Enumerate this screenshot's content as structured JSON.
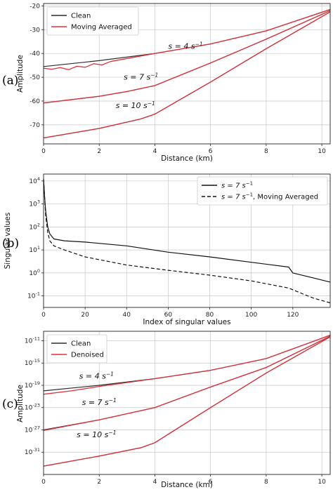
{
  "chart_data": [
    {
      "type": "line",
      "panel_label": "(a)",
      "xlabel": "Distance (km)",
      "ylabel": "Amplitude",
      "xlim": [
        0,
        10.3
      ],
      "ylim": [
        -78,
        -19
      ],
      "xticks": [
        0,
        2,
        4,
        6,
        8,
        10
      ],
      "yticks": [
        -70,
        -60,
        -50,
        -40,
        -30,
        -20
      ],
      "grid": true,
      "legend_position": "top-left",
      "legend": [
        {
          "label": "Clean",
          "color": "#2b2b2b"
        },
        {
          "label": "Moving Averaged",
          "color": "#e0303a"
        }
      ],
      "annotations": [
        {
          "text": "s = 4 s",
          "sup": "−1",
          "x": 5.1,
          "y": -38
        },
        {
          "text": "s = 7 s",
          "sup": "−1",
          "x": 3.5,
          "y": -51
        },
        {
          "text": "s = 10 s",
          "sup": "−1",
          "x": 3.3,
          "y": -63
        }
      ],
      "series": [
        {
          "role": "Clean",
          "color": "#2b2b2b",
          "x": [
            0,
            2,
            4,
            6,
            8,
            10.3
          ],
          "y": [
            -45.5,
            -43,
            -40,
            -36,
            -30.5,
            -21.5
          ]
        },
        {
          "role": "Moving Averaged",
          "color": "#e0303a",
          "x": [
            0,
            0.3,
            0.6,
            0.9,
            1.2,
            1.5,
            1.8,
            2.1,
            2.4,
            4,
            6,
            8,
            10.3
          ],
          "y": [
            -46.2,
            -46.6,
            -45.9,
            -46.8,
            -45.4,
            -45.8,
            -44.3,
            -44.8,
            -43.4,
            -40,
            -36,
            -30.5,
            -21.5
          ]
        },
        {
          "role": "Clean",
          "color": "#2b2b2b",
          "x": [
            0,
            2,
            3,
            4,
            6,
            8,
            10.3
          ],
          "y": [
            -60.8,
            -58,
            -56,
            -53.5,
            -44,
            -34,
            -22
          ]
        },
        {
          "role": "Moving Averaged",
          "color": "#e0303a",
          "x": [
            0,
            2,
            3,
            4,
            6,
            8,
            10.3
          ],
          "y": [
            -60.8,
            -58,
            -56,
            -53.5,
            -44,
            -34,
            -22
          ]
        },
        {
          "role": "Clean",
          "color": "#2b2b2b",
          "x": [
            0,
            2,
            3.5,
            4,
            6,
            8,
            10.3
          ],
          "y": [
            -75.5,
            -71.5,
            -67.5,
            -65.5,
            -52,
            -38,
            -22.5
          ]
        },
        {
          "role": "Moving Averaged",
          "color": "#e0303a",
          "x": [
            0,
            2,
            3.5,
            4,
            6,
            8,
            10.3
          ],
          "y": [
            -75.5,
            -71.5,
            -67.5,
            -65.5,
            -52,
            -38,
            -22.5
          ]
        }
      ]
    },
    {
      "type": "line",
      "panel_label": "(b)",
      "xlabel": "Index of singular values",
      "ylabel": "Singular values",
      "xlim": [
        0,
        138
      ],
      "ylim_log10": [
        -1.5,
        4.3
      ],
      "yscale": "log",
      "xticks": [
        0,
        20,
        40,
        60,
        80,
        100,
        120
      ],
      "yticks_exp": [
        -1,
        0,
        1,
        2,
        3,
        4
      ],
      "tick_base": "10",
      "grid": true,
      "legend_position": "top-right",
      "legend": [
        {
          "label": "s = 7 s",
          "sup": "−1",
          "suffix": "",
          "color": "#111111",
          "dash": ""
        },
        {
          "label": "s = 7 s",
          "sup": "−1",
          "suffix": ", Moving Averaged",
          "color": "#111111",
          "dash": "5,3"
        }
      ],
      "series": [
        {
          "role": "s = 7 s^-1",
          "color": "#111111",
          "dash": "",
          "x": [
            0,
            0.5,
            1,
            2,
            3,
            5,
            10,
            20,
            40,
            60,
            80,
            100,
            118,
            120,
            130,
            138
          ],
          "y": [
            12000,
            2000,
            500,
            100,
            50,
            30,
            25,
            22,
            15,
            8,
            5,
            2.9,
            1.8,
            1.0,
            0.6,
            0.4
          ]
        },
        {
          "role": "s = 7 s^-1, Moving Averaged",
          "color": "#111111",
          "dash": "5,3",
          "x": [
            0,
            0.5,
            1,
            2,
            3,
            5,
            10,
            20,
            40,
            60,
            80,
            100,
            118,
            125,
            130,
            138
          ],
          "y": [
            12000,
            2000,
            300,
            60,
            25,
            15,
            10,
            5,
            2.2,
            1.3,
            0.8,
            0.45,
            0.22,
            0.12,
            0.08,
            0.05
          ]
        }
      ]
    },
    {
      "type": "line",
      "panel_label": "(c)",
      "xlabel": "Distance (km)",
      "ylabel": "Amplitude",
      "xlim": [
        0,
        10.3
      ],
      "ylim_log10": [
        -35,
        -9.3
      ],
      "yscale": "log",
      "xticks": [
        0,
        2,
        4,
        6,
        8,
        10
      ],
      "yticks_exp": [
        -31,
        -27,
        -23,
        -19,
        -15,
        -11
      ],
      "tick_base": "10",
      "grid": true,
      "legend_position": "top-left",
      "legend": [
        {
          "label": "Clean",
          "color": "#2b2b2b"
        },
        {
          "label": "Denoised",
          "color": "#e0303a"
        }
      ],
      "annotations": [
        {
          "text": "s = 4 s",
          "sup": "−1",
          "x": 1.9,
          "y_log10": -17.8
        },
        {
          "text": "s = 7 s",
          "sup": "−1",
          "x": 2,
          "y_log10": -22.5
        },
        {
          "text": "s = 10 s",
          "sup": "−1",
          "x": 1.9,
          "y_log10": -28.3
        }
      ],
      "series": [
        {
          "role": "Clean",
          "color": "#2b2b2b",
          "x": [
            0,
            2,
            4,
            6,
            8,
            10.3
          ],
          "y_log10": [
            -20,
            -19,
            -17.8,
            -16.3,
            -14.2,
            -10
          ]
        },
        {
          "role": "Denoised",
          "color": "#e0303a",
          "x": [
            0,
            1,
            2,
            4,
            6,
            8,
            10.3
          ],
          "y_log10": [
            -20.6,
            -20,
            -19.2,
            -17.8,
            -16.3,
            -14.2,
            -10
          ]
        },
        {
          "role": "Clean",
          "color": "#2b2b2b",
          "x": [
            0,
            2,
            4,
            6,
            8,
            10.3
          ],
          "y_log10": [
            -27,
            -25.2,
            -23,
            -19.3,
            -15.8,
            -10.2
          ]
        },
        {
          "role": "Denoised",
          "color": "#e0303a",
          "x": [
            0,
            2,
            4,
            6,
            8,
            10.3
          ],
          "y_log10": [
            -27.1,
            -25.2,
            -23,
            -19.3,
            -15.8,
            -10.2
          ]
        },
        {
          "role": "Clean",
          "color": "#2b2b2b",
          "x": [
            0,
            2,
            3.5,
            4,
            6,
            8,
            10.3
          ],
          "y_log10": [
            -33.5,
            -31.7,
            -30.2,
            -29.3,
            -23,
            -16.8,
            -10.3
          ]
        },
        {
          "role": "Denoised",
          "color": "#e0303a",
          "x": [
            0,
            2,
            3.5,
            4,
            6,
            8,
            10.3
          ],
          "y_log10": [
            -33.5,
            -31.7,
            -30.2,
            -29.3,
            -23,
            -16.8,
            -10.3
          ]
        }
      ]
    }
  ]
}
